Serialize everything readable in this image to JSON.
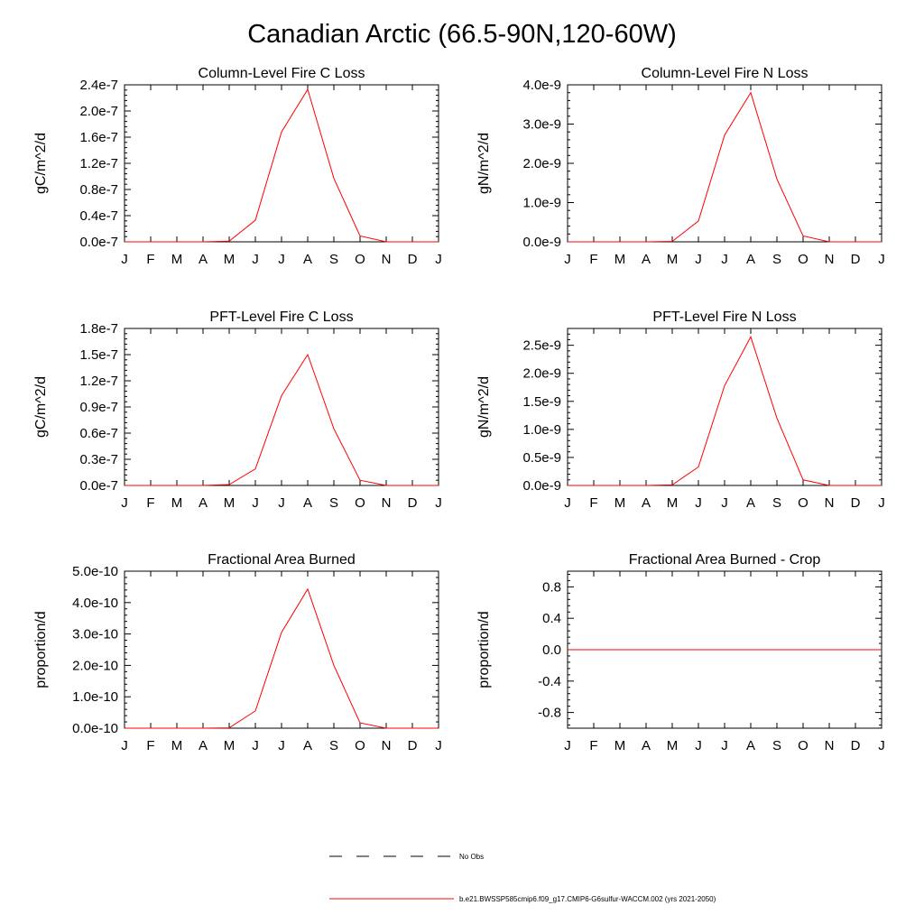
{
  "page_title": "Canadian Arctic (66.5-90N,120-60W)",
  "months": [
    "J",
    "F",
    "M",
    "A",
    "M",
    "J",
    "J",
    "A",
    "S",
    "O",
    "N",
    "D",
    "J"
  ],
  "chart_data": [
    {
      "type": "line",
      "title": "Column-Level Fire C Loss",
      "ylabel": "gC/m^2/d",
      "ylim": [
        0,
        2.4e-07
      ],
      "yticks": [
        0,
        4e-08,
        8e-08,
        1.2e-07,
        1.6e-07,
        2e-07,
        2.4e-07
      ],
      "ytick_labels": [
        "0.0e-7",
        "0.4e-7",
        "0.8e-7",
        "1.2e-7",
        "1.6e-7",
        "2.0e-7",
        "2.4e-7"
      ],
      "series": [
        {
          "values": [
            0,
            0,
            0,
            0,
            1e-09,
            3.3e-08,
            1.68e-07,
            2.33e-07,
            9.7e-08,
            9e-09,
            0,
            0,
            0
          ]
        }
      ]
    },
    {
      "type": "line",
      "title": "Column-Level Fire N Loss",
      "ylabel": "gN/m^2/d",
      "ylim": [
        0,
        4e-09
      ],
      "yticks": [
        0,
        1e-09,
        2e-09,
        3e-09,
        4e-09
      ],
      "ytick_labels": [
        "0.0e-9",
        "1.0e-9",
        "2.0e-9",
        "3.0e-9",
        "4.0e-9"
      ],
      "series": [
        {
          "values": [
            0,
            0,
            0,
            0,
            1e-11,
            5.3e-10,
            2.72e-09,
            3.8e-09,
            1.6e-09,
            1.5e-10,
            0,
            0,
            0
          ]
        }
      ]
    },
    {
      "type": "line",
      "title": "PFT-Level Fire C Loss",
      "ylabel": "gC/m^2/d",
      "ylim": [
        0,
        1.8e-07
      ],
      "yticks": [
        0,
        3e-08,
        6e-08,
        9e-08,
        1.2e-07,
        1.5e-07,
        1.8e-07
      ],
      "ytick_labels": [
        "0.0e-7",
        "0.3e-7",
        "0.6e-7",
        "0.9e-7",
        "1.2e-7",
        "1.5e-7",
        "1.8e-7"
      ],
      "series": [
        {
          "values": [
            0,
            0,
            0,
            0,
            1e-09,
            1.9e-08,
            1.03e-07,
            1.5e-07,
            6.5e-08,
            6e-09,
            0,
            0,
            0
          ]
        }
      ]
    },
    {
      "type": "line",
      "title": "PFT-Level Fire N Loss",
      "ylabel": "gN/m^2/d",
      "ylim": [
        0,
        2.8e-09
      ],
      "yticks": [
        0,
        5e-10,
        1e-09,
        1.5e-09,
        2e-09,
        2.5e-09
      ],
      "ytick_labels": [
        "0.0e-9",
        "0.5e-9",
        "1.0e-9",
        "1.5e-9",
        "2.0e-9",
        "2.5e-9"
      ],
      "series": [
        {
          "values": [
            0,
            0,
            0,
            0,
            1e-11,
            3.3e-10,
            1.78e-09,
            2.65e-09,
            1.2e-09,
            1e-10,
            0,
            0,
            0
          ]
        }
      ]
    },
    {
      "type": "line",
      "title": "Fractional Area Burned",
      "ylabel": "proportion/d",
      "ylim": [
        0,
        5e-10
      ],
      "yticks": [
        0,
        1e-10,
        2e-10,
        3e-10,
        4e-10,
        5e-10
      ],
      "ytick_labels": [
        "0.0e-10",
        "1.0e-10",
        "2.0e-10",
        "3.0e-10",
        "4.0e-10",
        "5.0e-10"
      ],
      "series": [
        {
          "values": [
            0,
            0,
            0,
            0,
            1e-12,
            5.5e-11,
            3.05e-10,
            4.43e-10,
            2e-10,
            1.7e-11,
            0,
            0,
            0
          ]
        }
      ]
    },
    {
      "type": "line",
      "title": "Fractional Area Burned - Crop",
      "ylabel": "proportion/d",
      "ylim": [
        -1.0,
        1.0
      ],
      "yticks": [
        -0.8,
        -0.4,
        0.0,
        0.4,
        0.8
      ],
      "ytick_labels": [
        "-0.8",
        "-0.4",
        "0.0",
        "0.4",
        "0.8"
      ],
      "series": [
        {
          "values": [
            0,
            0,
            0,
            0,
            0,
            0,
            0,
            0,
            0,
            0,
            0,
            0,
            0
          ]
        }
      ]
    }
  ],
  "legend": [
    {
      "label": "No Obs",
      "style": "dashed",
      "color": "#000000"
    },
    {
      "label": "b.e21.BWSSP585cmip6.f09_g17.CMIP6-G6sulfur-WACCM.002 (yrs 2021-2050)",
      "style": "solid",
      "color": "#ff0000"
    }
  ],
  "colors": {
    "series": "#ff0000",
    "axes": "#000000"
  }
}
